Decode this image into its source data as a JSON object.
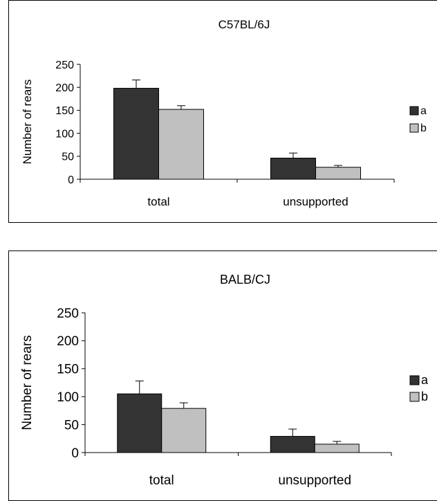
{
  "chart_data": [
    {
      "type": "bar",
      "title": "C57BL/6J",
      "xlabel": "",
      "ylabel": "Number of rears",
      "categories": [
        "total",
        "unsupported"
      ],
      "ylim": [
        0,
        250
      ],
      "yticks": [
        0,
        50,
        100,
        150,
        200,
        250
      ],
      "series": [
        {
          "name": "a",
          "values": [
            198,
            46
          ],
          "errors": [
            18,
            11
          ],
          "color": "#333333"
        },
        {
          "name": "b",
          "values": [
            152,
            26
          ],
          "errors": [
            8,
            4
          ],
          "color": "#c0c0c0"
        }
      ],
      "legend": "right",
      "grid": false
    },
    {
      "type": "bar",
      "title": "BALB/CJ",
      "xlabel": "",
      "ylabel": "Number of rears",
      "categories": [
        "total",
        "unsupported"
      ],
      "ylim": [
        0,
        250
      ],
      "yticks": [
        0,
        50,
        100,
        150,
        200,
        250
      ],
      "series": [
        {
          "name": "a",
          "values": [
            105,
            29
          ],
          "errors": [
            23,
            13
          ],
          "color": "#333333"
        },
        {
          "name": "b",
          "values": [
            79,
            15
          ],
          "errors": [
            10,
            5
          ],
          "color": "#c0c0c0"
        }
      ],
      "legend": "right",
      "grid": false
    }
  ]
}
